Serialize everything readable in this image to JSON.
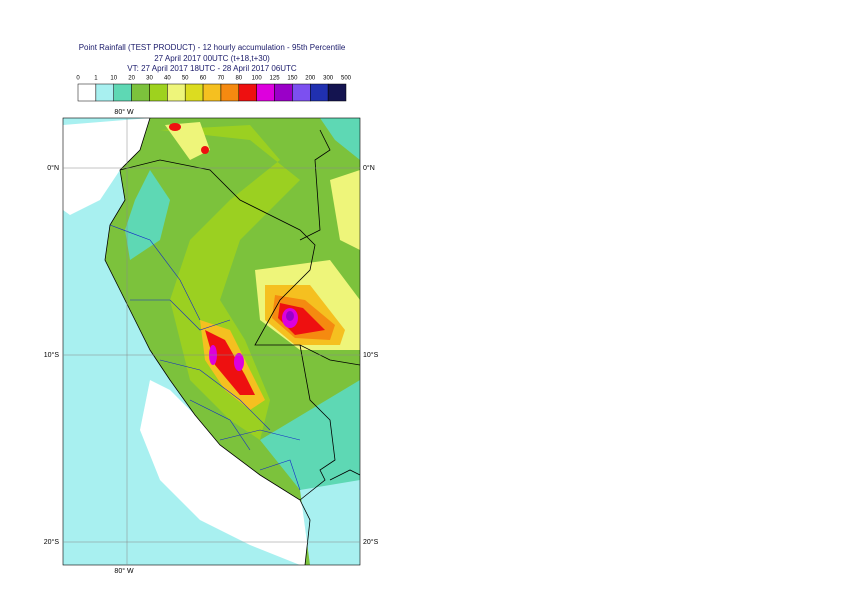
{
  "header": {
    "title": "Point Rainfall (TEST PRODUCT) - 12 hourly accumulation - 95th Percentile",
    "subtitle": "27 April 2017 00UTC (t+18,t+30)",
    "validity": "VT: 27 April 2017 18UTC - 28 April 2017 06UTC"
  },
  "legend": {
    "bounds": [
      0,
      1,
      10,
      20,
      30,
      40,
      50,
      60,
      70,
      80,
      100,
      125,
      150,
      200,
      300,
      500
    ],
    "colors": [
      "#ffffff",
      "#a8f0f0",
      "#5ed8b4",
      "#7cc23c",
      "#9ed21e",
      "#eef57a",
      "#dcdc20",
      "#f5c020",
      "#f58a10",
      "#ee1010",
      "#dd00dd",
      "#9a00c8",
      "#7c50f0",
      "#2030b0",
      "#141450"
    ]
  },
  "map": {
    "longitudes": [
      {
        "value": -80,
        "label": "80° W"
      }
    ],
    "latitudes": [
      {
        "value": 0,
        "label": "0°N"
      },
      {
        "value": -10,
        "label": "10°S"
      },
      {
        "value": -20,
        "label": "20°S"
      }
    ]
  }
}
